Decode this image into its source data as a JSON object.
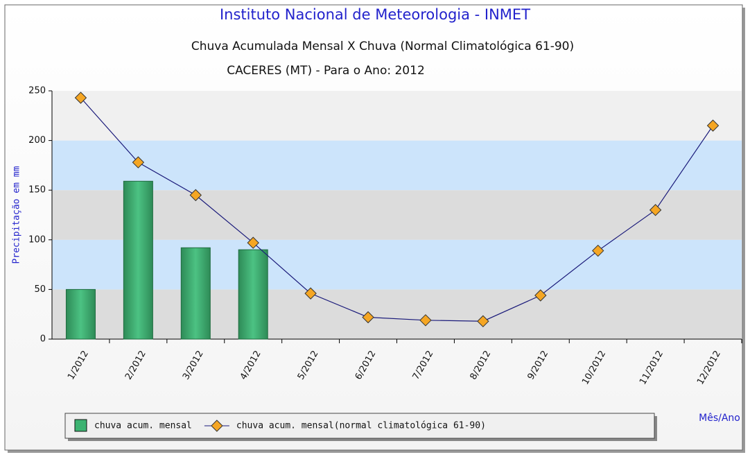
{
  "chart_data": {
    "type": "bar",
    "title": "Instituto Nacional de Meteorologia - INMET",
    "subtitle": "Chuva Acumulada Mensal X Chuva (Normal Climatológica 61-90)",
    "station": "CACERES (MT) - Para o Ano: 2012",
    "y_label": "Precipitação em mm",
    "x_label": "Mês/Ano",
    "categories": [
      "1/2012",
      "2/2012",
      "3/2012",
      "4/2012",
      "5/2012",
      "6/2012",
      "7/2012",
      "8/2012",
      "9/2012",
      "10/2012",
      "11/2012",
      "12/2012"
    ],
    "series": [
      {
        "name": "chuva acum. mensal",
        "type": "bar",
        "color": "#3cb371",
        "values": [
          50,
          159,
          92,
          90,
          null,
          null,
          null,
          null,
          null,
          null,
          null,
          null
        ]
      },
      {
        "name": "chuva acum. mensal(normal climatológica 61-90)",
        "type": "line",
        "color": "#1a1a7a",
        "marker_color": "#f5a623",
        "values": [
          243,
          178,
          145,
          97,
          46,
          22,
          19,
          18,
          44,
          89,
          130,
          215
        ]
      }
    ],
    "ylim": [
      0,
      250
    ],
    "yticks": [
      0,
      50,
      100,
      150,
      200,
      250
    ],
    "band_colors": [
      "#dcdcdc",
      "#cce4fb"
    ]
  }
}
